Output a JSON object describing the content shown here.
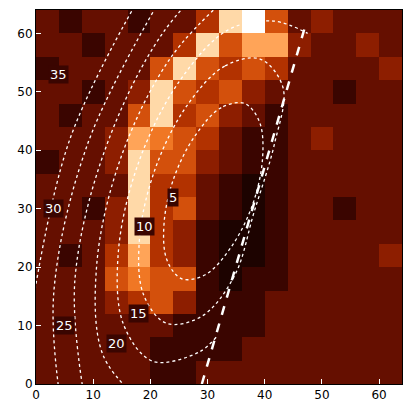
{
  "chart_data": {
    "type": "heatmap",
    "x": [
      2,
      6,
      10,
      14,
      18,
      22,
      26,
      30,
      34,
      38,
      42,
      46,
      50,
      54,
      58,
      62
    ],
    "y": [
      2,
      6,
      10,
      14,
      18,
      22,
      26,
      30,
      34,
      38,
      42,
      46,
      50,
      54,
      58,
      62
    ],
    "z": [
      [
        3,
        3,
        3,
        3,
        3,
        2,
        2,
        3,
        3,
        3,
        3,
        3,
        3,
        3,
        3,
        3
      ],
      [
        3,
        3,
        3,
        3,
        3,
        2,
        2,
        2,
        2,
        3,
        3,
        3,
        3,
        3,
        3,
        3
      ],
      [
        3,
        3,
        3,
        3,
        3,
        3,
        2,
        2,
        2,
        2,
        3,
        3,
        3,
        3,
        3,
        3
      ],
      [
        3,
        3,
        3,
        4,
        5,
        6,
        4,
        2,
        2,
        2,
        3,
        3,
        3,
        3,
        3,
        3
      ],
      [
        3,
        3,
        3,
        6,
        7,
        6,
        6,
        2,
        1,
        2,
        2,
        3,
        3,
        3,
        3,
        3
      ],
      [
        3,
        2,
        3,
        5,
        8,
        5,
        4,
        2,
        1,
        1,
        2,
        3,
        3,
        3,
        3,
        4
      ],
      [
        3,
        3,
        3,
        4,
        9,
        5,
        4,
        2,
        1,
        1,
        2,
        3,
        3,
        3,
        3,
        3
      ],
      [
        3,
        3,
        2,
        4,
        9,
        5,
        6,
        3,
        2,
        1,
        2,
        3,
        3,
        2,
        3,
        3
      ],
      [
        3,
        3,
        3,
        3,
        9,
        5,
        5,
        3,
        2,
        1,
        2,
        3,
        3,
        3,
        3,
        3
      ],
      [
        2,
        3,
        3,
        4,
        9,
        6,
        6,
        4,
        3,
        2,
        2,
        3,
        3,
        3,
        3,
        3
      ],
      [
        3,
        3,
        3,
        4,
        8,
        7,
        6,
        5,
        3,
        2,
        2,
        3,
        4,
        3,
        3,
        3
      ],
      [
        3,
        2,
        3,
        3,
        6,
        9,
        5,
        6,
        4,
        3,
        2,
        3,
        3,
        3,
        3,
        3
      ],
      [
        3,
        3,
        2,
        3,
        4,
        9,
        6,
        5,
        6,
        4,
        3,
        3,
        3,
        2,
        3,
        3
      ],
      [
        2,
        3,
        3,
        3,
        3,
        6,
        9,
        6,
        5,
        6,
        5,
        3,
        3,
        3,
        3,
        4
      ],
      [
        3,
        3,
        2,
        3,
        3,
        3,
        5,
        9,
        6,
        8,
        8,
        4,
        3,
        3,
        4,
        3
      ],
      [
        3,
        2,
        3,
        3,
        2,
        3,
        3,
        5,
        9,
        10,
        6,
        3,
        4,
        3,
        3,
        3
      ]
    ],
    "zlim": [
      0,
      10
    ],
    "xlim": [
      0,
      64
    ],
    "ylim": [
      0,
      64
    ],
    "xticks": [
      0,
      10,
      20,
      30,
      40,
      50,
      60
    ],
    "yticks": [
      0,
      10,
      20,
      30,
      40,
      50,
      60
    ],
    "contours": [
      {
        "level": 5,
        "label_x": 24,
        "label_y": 32,
        "x": [
          36.5,
          32.4,
          27.9,
          24.2,
          22.4,
          22.9,
          25.5,
          29.6,
          34.1,
          37.8,
          39.6,
          39.1,
          36.5
        ],
        "y": [
          48.0,
          47.3,
          42.6,
          35.5,
          27.6,
          21.2,
          18.0,
          18.7,
          23.4,
          30.5,
          38.4,
          44.8,
          48.0
        ]
      },
      {
        "level": 10,
        "label_x": 19,
        "label_y": 27,
        "x": [
          39.2,
          33.0,
          26.3,
          20.8,
          18.1,
          18.8,
          22.8,
          29.0,
          34.7,
          38.1,
          41.7,
          43.2,
          39.2
        ],
        "y": [
          55.6,
          54.4,
          47.5,
          36.7,
          24.9,
          15.3,
          10.4,
          11.6,
          18.5,
          29.3,
          41.1,
          50.7,
          55.6
        ]
      },
      {
        "level": 15,
        "label_x": 18,
        "label_y": 12,
        "x": [
          31.5,
          28.4,
          20.4,
          15.3,
          14.4,
          17.9,
          25.0,
          33.6,
          41.6,
          47.5
        ],
        "y": [
          8.0,
          5.4,
          3.9,
          10.2,
          22.6,
          37.8,
          51.7,
          60.6,
          62.1,
          60.0
        ]
      },
      {
        "level": 20,
        "label_x": 14,
        "label_y": 7,
        "x": [
          18.0,
          11.7,
          10.6,
          14.9,
          23.6,
          34.2
        ],
        "y": [
          -2.7,
          5.0,
          20.2,
          38.9,
          55.9,
          66.9
        ]
      },
      {
        "level": 25,
        "label_x": 5,
        "label_y": 10,
        "x": [
          8.1,
          6.8,
          12.0,
          22.2,
          34.8
        ],
        "y": [
          -0.2,
          17.8,
          39.9,
          60.1,
          73.1
        ]
      },
      {
        "level": 30,
        "label_x": 3,
        "label_y": 30,
        "x": [
          4.6,
          3.1,
          9.0,
          20.9
        ],
        "y": [
          -5.3,
          15.5,
          41.0,
          64.4
        ]
      },
      {
        "level": 35,
        "label_x": 4,
        "label_y": 53,
        "x": [
          -0.7,
          6.0,
          19.5
        ],
        "y": [
          13.1,
          42.1,
          68.6
        ]
      }
    ],
    "contour_color": "#ffffff",
    "line_style": "dotted",
    "limb": {
      "x": [
        29,
        47
      ],
      "y": [
        0,
        61
      ],
      "color": "#ffffff",
      "line_style": "dashed"
    },
    "grid": false
  }
}
